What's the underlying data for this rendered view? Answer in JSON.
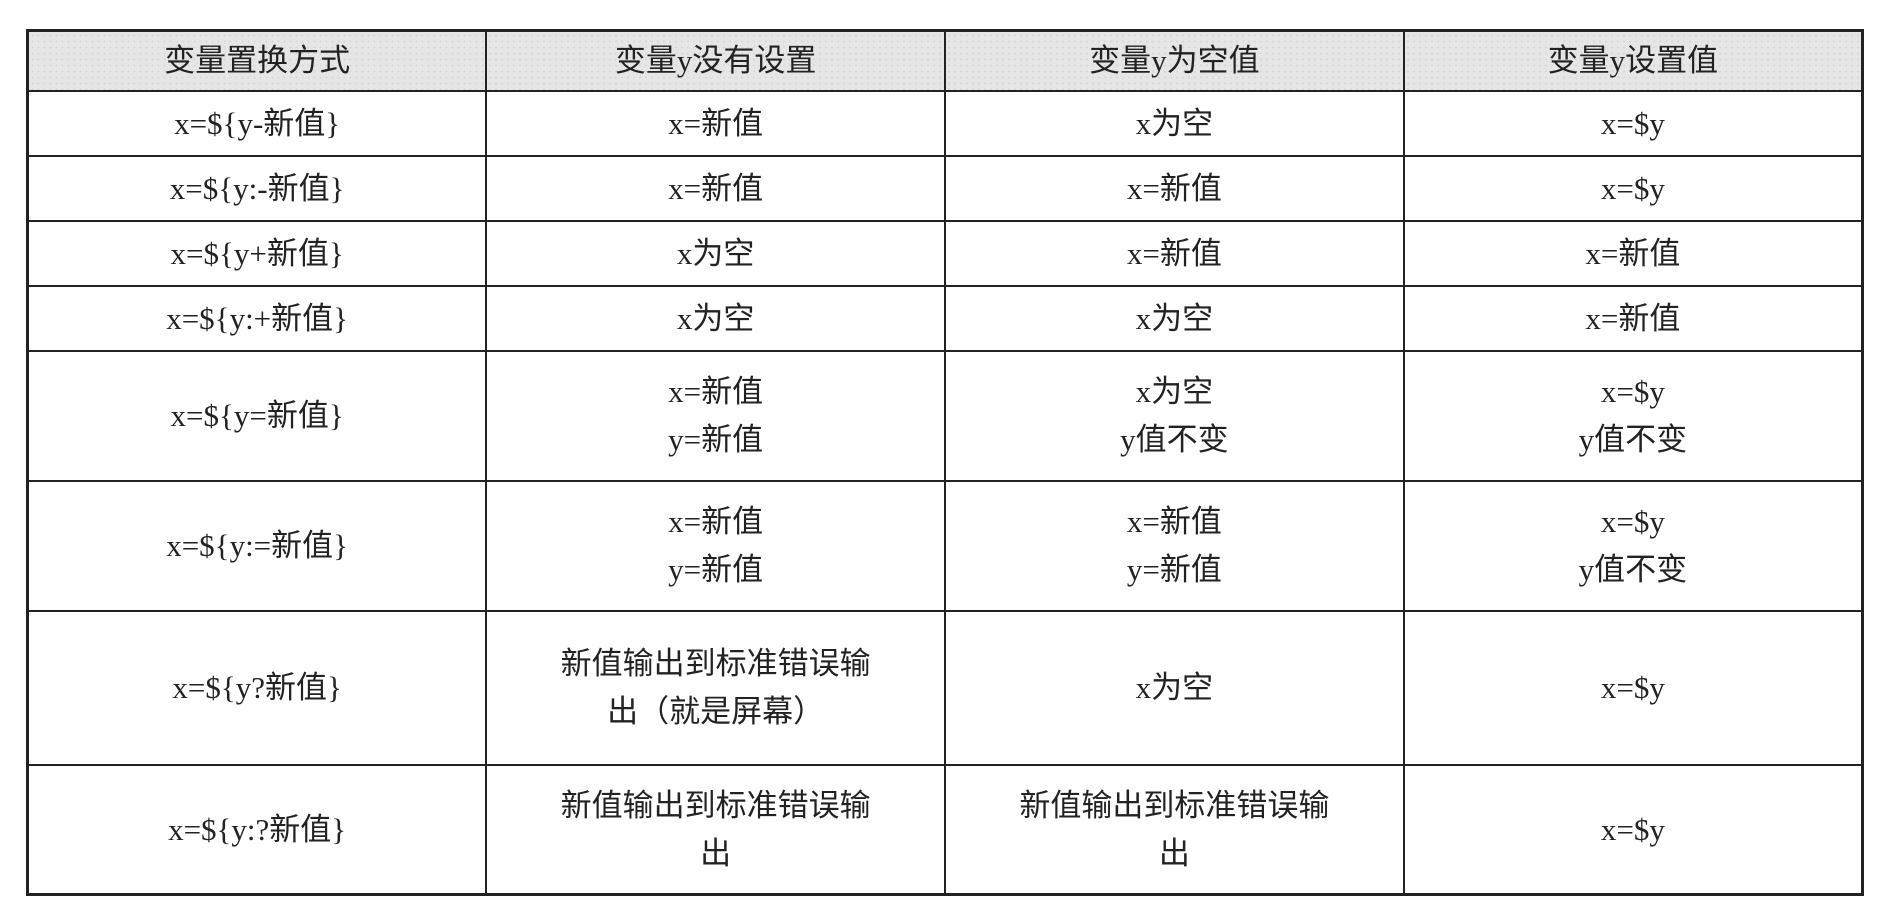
{
  "table": {
    "headers": [
      "变量置换方式",
      "变量y没有设置",
      "变量y为空值",
      "变量y设置值"
    ],
    "rows": [
      {
        "method": "x=${y-新值}",
        "unset": [
          "x=新值"
        ],
        "empty": [
          "x为空"
        ],
        "set": [
          "x=$y"
        ]
      },
      {
        "method": "x=${y:-新值}",
        "unset": [
          "x=新值"
        ],
        "empty": [
          "x=新值"
        ],
        "set": [
          "x=$y"
        ]
      },
      {
        "method": "x=${y+新值}",
        "unset": [
          "x为空"
        ],
        "empty": [
          "x=新值"
        ],
        "set": [
          "x=新值"
        ]
      },
      {
        "method": "x=${y:+新值}",
        "unset": [
          "x为空"
        ],
        "empty": [
          "x为空"
        ],
        "set": [
          "x=新值"
        ]
      },
      {
        "method": "x=${y=新值}",
        "unset": [
          "x=新值",
          "y=新值"
        ],
        "empty": [
          "x为空",
          "y值不变"
        ],
        "set": [
          "x=$y",
          "y值不变"
        ]
      },
      {
        "method": "x=${y:=新值}",
        "unset": [
          "x=新值",
          "y=新值"
        ],
        "empty": [
          "x=新值",
          "y=新值"
        ],
        "set": [
          "x=$y",
          "y值不变"
        ]
      },
      {
        "method": "x=${y?新值}",
        "unset": [
          "新值输出到标准错误输",
          "出（就是屏幕）"
        ],
        "empty": [
          "x为空"
        ],
        "set": [
          "x=$y"
        ]
      },
      {
        "method": "x=${y:?新值}",
        "unset": [
          "新值输出到标准错误输",
          "出"
        ],
        "empty": [
          "新值输出到标准错误输",
          "出"
        ],
        "set": [
          "x=$y"
        ]
      }
    ]
  }
}
